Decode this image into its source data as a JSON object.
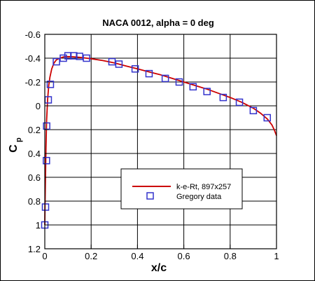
{
  "chart_data": {
    "type": "line",
    "title": "NACA 0012, alpha = 0 deg",
    "xlabel": "x/c",
    "ylabel": {
      "main": "C",
      "subscript": "p"
    },
    "xlim": [
      0,
      1
    ],
    "ylim": [
      1.2,
      -0.6
    ],
    "y_inverted": true,
    "grid": true,
    "x_ticks": [
      0,
      0.2,
      0.4,
      0.6,
      0.8,
      1
    ],
    "x_tick_labels": [
      "0",
      "0.2",
      "0.4",
      "0.6",
      "0.8",
      "1"
    ],
    "y_ticks": [
      -0.6,
      -0.4,
      -0.2,
      0,
      0.2,
      0.4,
      0.6,
      0.8,
      1,
      1.2
    ],
    "y_tick_labels": [
      "-0.6",
      "-0.4",
      "-0.2",
      "0",
      "0.2",
      "0.4",
      "0.6",
      "0.8",
      "1",
      "1.2"
    ],
    "legend_position": "lower-right",
    "series": [
      {
        "name": "k-e-Rt, 897x257",
        "kind": "line",
        "color": "#cc0000",
        "x": [
          0.0,
          0.001,
          0.003,
          0.005,
          0.008,
          0.012,
          0.017,
          0.022,
          0.03,
          0.04,
          0.05,
          0.065,
          0.08,
          0.1,
          0.12,
          0.15,
          0.18,
          0.2,
          0.25,
          0.3,
          0.35,
          0.4,
          0.45,
          0.5,
          0.55,
          0.6,
          0.65,
          0.7,
          0.75,
          0.8,
          0.85,
          0.9,
          0.93,
          0.96,
          0.98,
          0.99,
          1.0
        ],
        "y": [
          1.0,
          0.85,
          0.6,
          0.35,
          0.12,
          -0.05,
          -0.17,
          -0.24,
          -0.31,
          -0.36,
          -0.385,
          -0.4,
          -0.41,
          -0.413,
          -0.412,
          -0.407,
          -0.4,
          -0.395,
          -0.38,
          -0.36,
          -0.335,
          -0.31,
          -0.285,
          -0.26,
          -0.23,
          -0.2,
          -0.17,
          -0.14,
          -0.105,
          -0.07,
          -0.03,
          0.02,
          0.06,
          0.11,
          0.16,
          0.2,
          0.25
        ]
      },
      {
        "name": "Gregory data",
        "kind": "scatter",
        "color": "#3333cc",
        "x": [
          0.0,
          0.003,
          0.007,
          0.008,
          0.015,
          0.024,
          0.05,
          0.08,
          0.1,
          0.125,
          0.15,
          0.18,
          0.29,
          0.32,
          0.39,
          0.45,
          0.52,
          0.58,
          0.64,
          0.7,
          0.77,
          0.84,
          0.9,
          0.96
        ],
        "y": [
          1.0,
          0.85,
          0.46,
          0.17,
          -0.05,
          -0.18,
          -0.37,
          -0.4,
          -0.42,
          -0.42,
          -0.415,
          -0.4,
          -0.37,
          -0.35,
          -0.31,
          -0.27,
          -0.23,
          -0.2,
          -0.16,
          -0.12,
          -0.07,
          -0.03,
          0.04,
          0.1
        ]
      }
    ]
  }
}
